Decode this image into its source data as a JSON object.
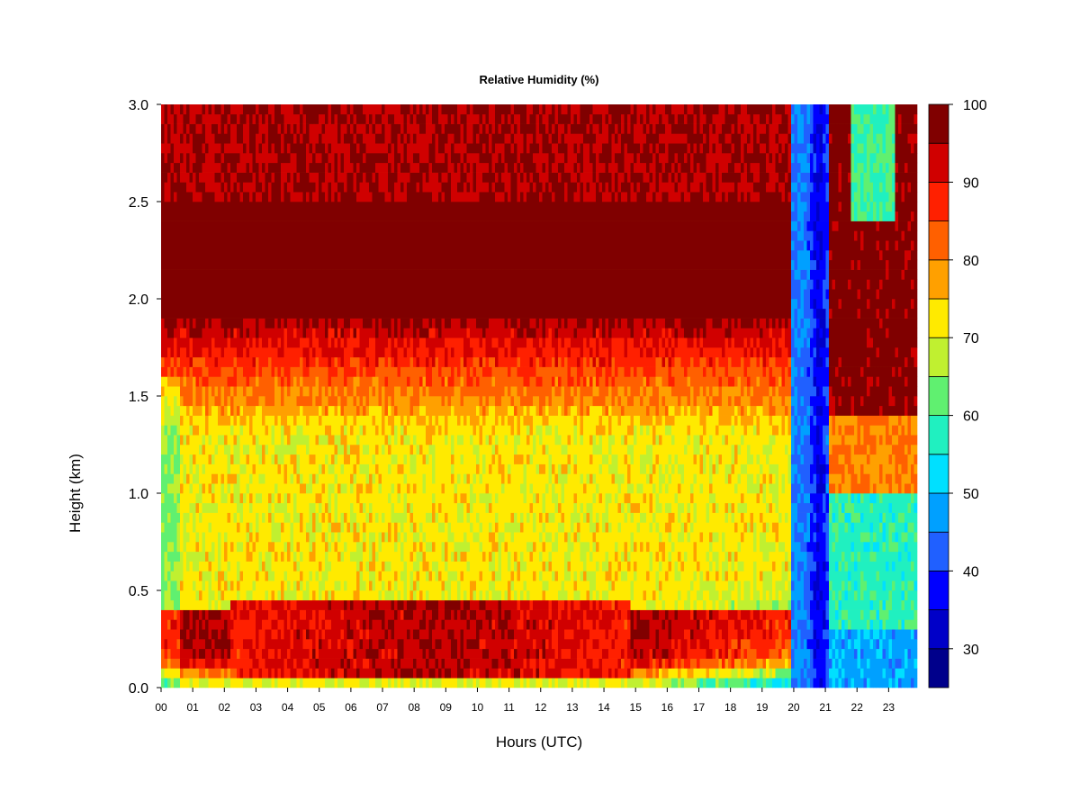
{
  "chart_data": {
    "type": "heatmap",
    "title": "Relative Humidity (%)",
    "xlabel": "Hours (UTC)",
    "ylabel": "Height (km)",
    "x_ticks": [
      "00",
      "01",
      "02",
      "03",
      "04",
      "05",
      "06",
      "07",
      "08",
      "09",
      "10",
      "11",
      "12",
      "13",
      "14",
      "15",
      "16",
      "17",
      "18",
      "19",
      "20",
      "21",
      "22",
      "23"
    ],
    "x_range_hours": [
      0,
      23.9
    ],
    "y_ticks": [
      "0.0",
      "0.5",
      "1.0",
      "1.5",
      "2.0",
      "2.5",
      "3.0"
    ],
    "y_range_km": [
      0,
      3.0
    ],
    "colorbar": {
      "ticks": [
        "30",
        "40",
        "50",
        "60",
        "70",
        "80",
        "90",
        "100"
      ],
      "range": [
        25,
        100
      ],
      "levels": [
        25,
        30,
        35,
        40,
        45,
        50,
        55,
        60,
        65,
        70,
        75,
        80,
        85,
        90,
        95,
        100
      ],
      "colors": [
        "#00008b",
        "#0000c8",
        "#0000ff",
        "#2060ff",
        "#00a0ff",
        "#00e0ff",
        "#20f0c0",
        "#60f070",
        "#c0f030",
        "#ffea00",
        "#ffa000",
        "#ff6000",
        "#ff2000",
        "#d00000",
        "#800000"
      ]
    },
    "grid": false,
    "legend": "colorbar-right"
  }
}
